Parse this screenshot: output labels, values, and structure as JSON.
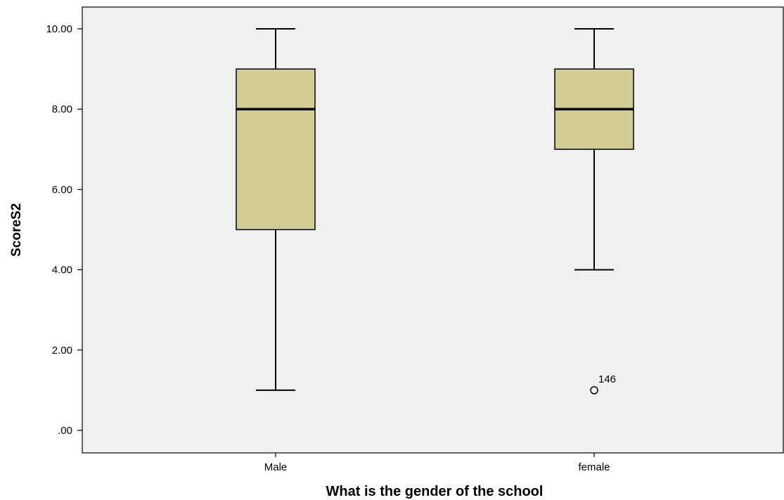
{
  "chart_data": {
    "type": "boxplot",
    "xlabel": "What is the gender of the school",
    "ylabel": "ScoreS2",
    "ylim": [
      0,
      10
    ],
    "yticks": [
      0,
      2,
      4,
      6,
      8,
      10
    ],
    "ytick_labels": [
      ".00",
      "2.00",
      "4.00",
      "6.00",
      "8.00",
      "10.00"
    ],
    "categories": [
      "Male",
      "female"
    ],
    "boxes": [
      {
        "category": "Male",
        "whisker_low": 1,
        "q1": 5,
        "median": 8,
        "q3": 9,
        "whisker_high": 10,
        "outliers": []
      },
      {
        "category": "female",
        "whisker_low": 4,
        "q1": 7,
        "median": 8,
        "q3": 9,
        "whisker_high": 10,
        "outliers": [
          {
            "value": 1,
            "label": "146"
          }
        ]
      }
    ],
    "grid": false,
    "colors": {
      "plot_background": "#f0f0f0",
      "box_fill": "#d3cd95",
      "stroke": "#000000"
    }
  }
}
